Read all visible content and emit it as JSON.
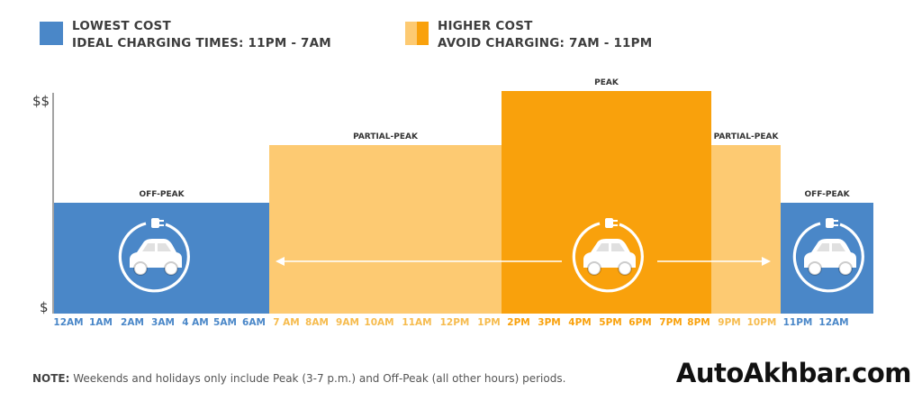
{
  "legend": {
    "low": {
      "title": "LOWEST COST",
      "subtitle": "IDEAL CHARGING TIMES: 11PM - 7AM",
      "color": "#4a87c8"
    },
    "high": {
      "title": "HIGHER COST",
      "subtitle": "AVOID CHARGING: 7AM - 11PM",
      "color": "#f8a31c"
    }
  },
  "chart_data": {
    "type": "bar",
    "y_tick_labels": [
      "$$",
      "$"
    ],
    "y_scale": "relative cost (1 = off-peak, 2 = partial-peak, 3 = peak)",
    "x_labels": [
      "12AM",
      "1AM",
      "2AM",
      "3AM",
      "4 AM",
      "5AM",
      "6AM",
      "7 AM",
      "8AM",
      "9AM",
      "10AM",
      "11AM",
      "12PM",
      "1PM",
      "2PM",
      "3PM",
      "4PM",
      "5PM",
      "6PM",
      "7PM",
      "8PM",
      "9PM",
      "10PM",
      "11PM",
      "12AM"
    ],
    "bands": [
      {
        "label": "OFF-PEAK",
        "start_label": "12AM",
        "end_label": "6AM",
        "level": 1,
        "color": "#4a87c8"
      },
      {
        "label": "PARTIAL-PEAK",
        "start_label": "7 AM",
        "end_label": "1PM",
        "level": 2,
        "color": "#fdca72"
      },
      {
        "label": "PEAK",
        "start_label": "2PM",
        "end_label": "8PM",
        "level": 3,
        "color": "#f9a10c"
      },
      {
        "label": "PARTIAL-PEAK",
        "start_label": "9PM",
        "end_label": "10PM",
        "level": 2,
        "color": "#fdca72"
      },
      {
        "label": "OFF-PEAK",
        "start_label": "11PM",
        "end_label": "12AM",
        "level": 1,
        "color": "#4a87c8"
      }
    ],
    "icons": [
      "ev-car-charging-icon",
      "ev-car-charging-icon",
      "ev-car-charging-icon"
    ]
  },
  "note": {
    "prefix": "NOTE:",
    "text": " Weekends and holidays only include Peak (3-7 p.m.) and Off-Peak (all other hours) periods."
  },
  "watermark": "AutoAkhbar.com"
}
